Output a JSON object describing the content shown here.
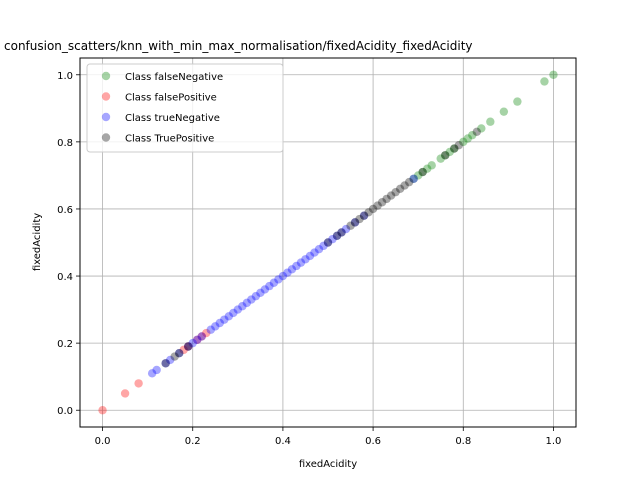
{
  "chart_data": {
    "type": "scatter",
    "title": "confusion_scatters/knn_with_min_max_normalisation/fixedAcidity_fixedAcidity",
    "xlabel": "fixedAcidity",
    "ylabel": "fixedAcidity",
    "xlim": [
      -0.05,
      1.05
    ],
    "ylim": [
      -0.05,
      1.05
    ],
    "xticks": [
      0.0,
      0.2,
      0.4,
      0.6,
      0.8,
      1.0
    ],
    "yticks": [
      0.0,
      0.2,
      0.4,
      0.6,
      0.8,
      1.0
    ],
    "xtick_labels": [
      "0.0",
      "0.2",
      "0.4",
      "0.6",
      "0.8",
      "1.0"
    ],
    "ytick_labels": [
      "0.0",
      "0.2",
      "0.4",
      "0.6",
      "0.8",
      "1.0"
    ],
    "grid": true,
    "legend_position": "top-left",
    "series": [
      {
        "name": "Class falseNegative",
        "color": "#008000",
        "values": [
          0.69,
          0.7,
          0.71,
          0.72,
          0.73,
          0.75,
          0.76,
          0.77,
          0.78,
          0.8,
          0.81,
          0.82,
          0.84,
          0.86,
          0.89,
          0.92,
          0.98,
          1.0
        ]
      },
      {
        "name": "Class falsePositive",
        "color": "#ff0000",
        "values": [
          0.0,
          0.05,
          0.08,
          0.18,
          0.19,
          0.21,
          0.22,
          0.23
        ]
      },
      {
        "name": "Class trueNegative",
        "color": "#0000ff",
        "values": [
          0.11,
          0.12,
          0.14,
          0.15,
          0.17,
          0.19,
          0.2,
          0.21,
          0.22,
          0.24,
          0.25,
          0.26,
          0.27,
          0.28,
          0.29,
          0.3,
          0.31,
          0.32,
          0.33,
          0.34,
          0.35,
          0.36,
          0.37,
          0.38,
          0.39,
          0.4,
          0.41,
          0.42,
          0.43,
          0.44,
          0.45,
          0.46,
          0.47,
          0.48,
          0.49,
          0.5,
          0.51,
          0.52,
          0.53,
          0.54,
          0.56,
          0.58,
          0.69
        ]
      },
      {
        "name": "Class TruePositive",
        "color": "#000000",
        "values": [
          0.14,
          0.16,
          0.17,
          0.19,
          0.5,
          0.52,
          0.53,
          0.55,
          0.56,
          0.57,
          0.58,
          0.59,
          0.6,
          0.61,
          0.62,
          0.63,
          0.64,
          0.65,
          0.66,
          0.67,
          0.68,
          0.71,
          0.76,
          0.78,
          0.79,
          0.83
        ]
      }
    ]
  }
}
